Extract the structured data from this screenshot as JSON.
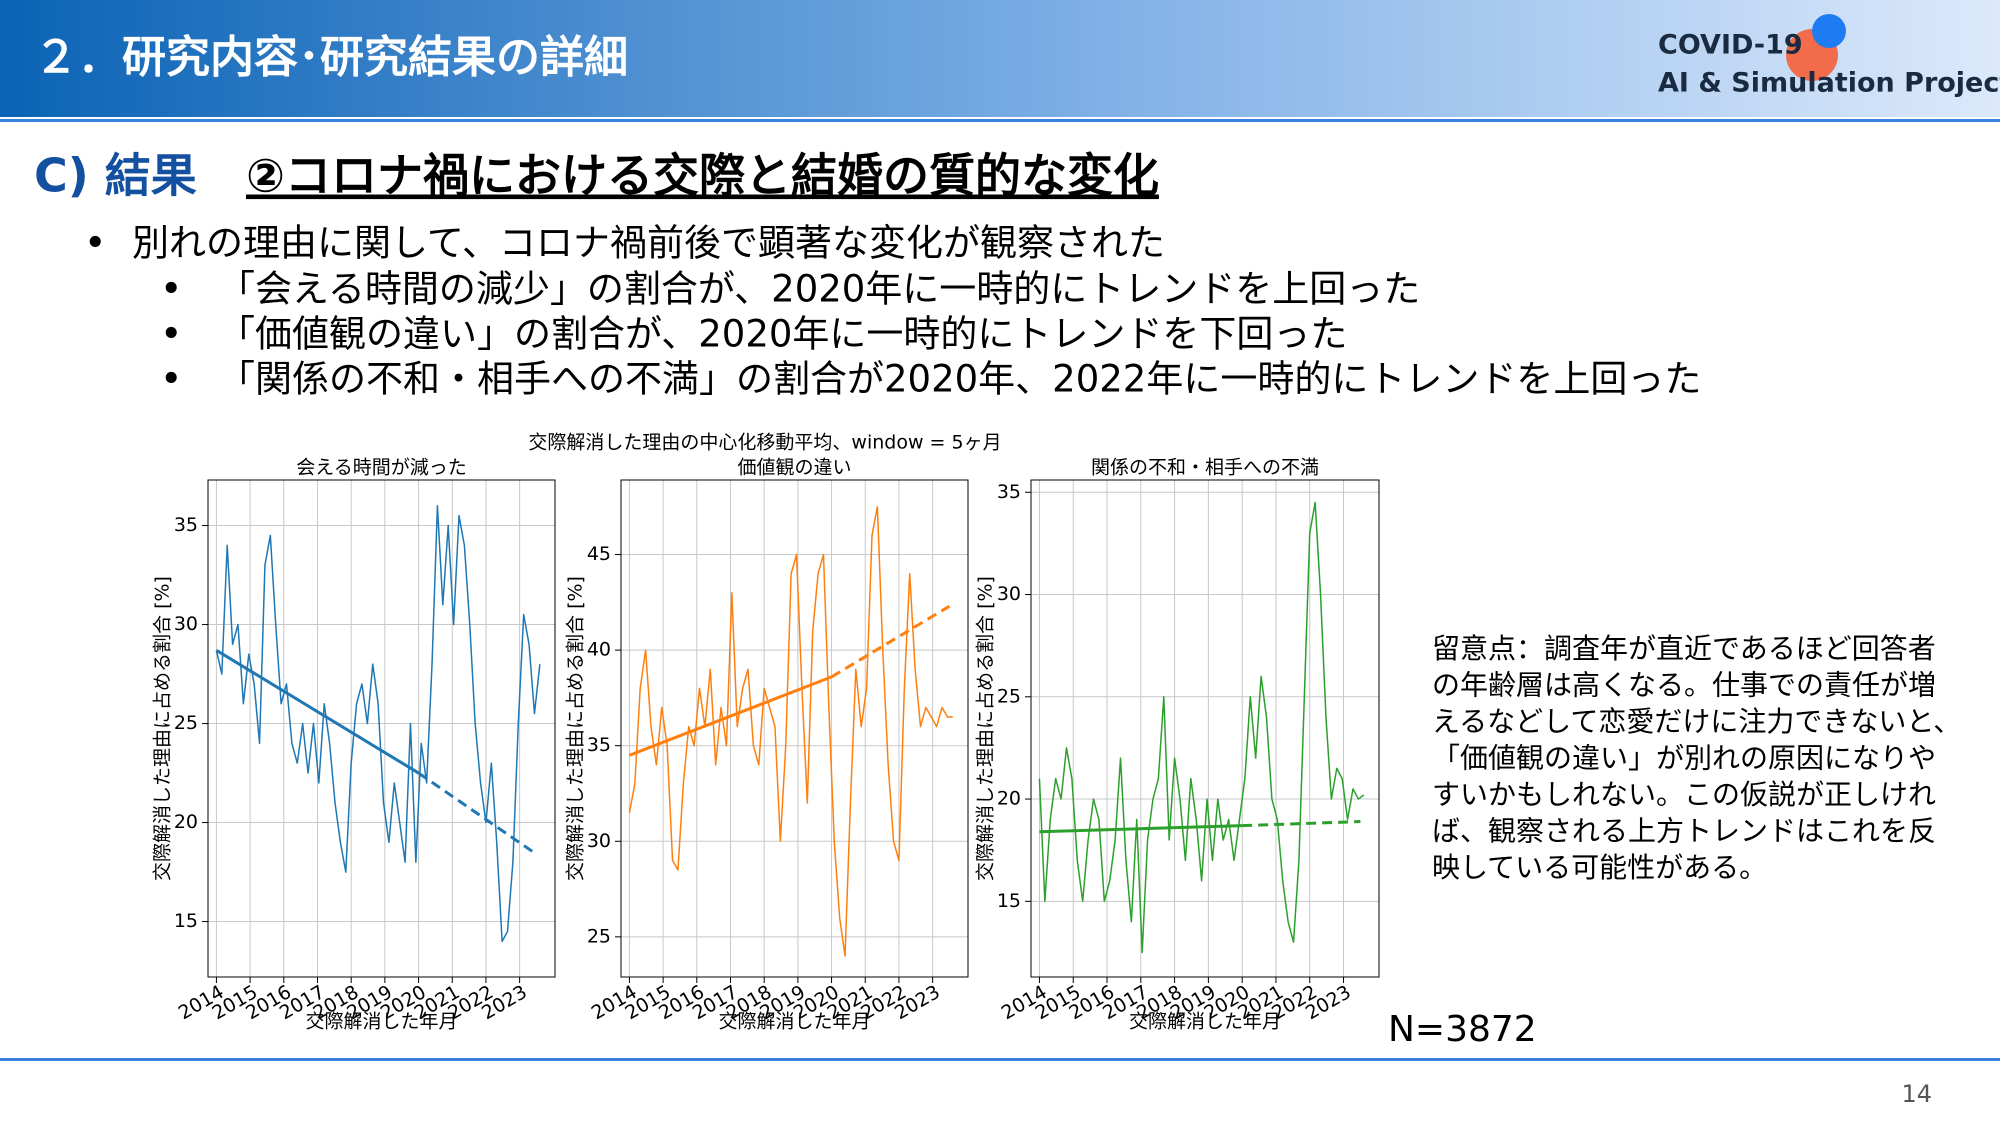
{
  "header": {
    "title": "２．研究内容･研究結果の詳細",
    "logo_line1": "COVID-19",
    "logo_line2": "AI & Simulation Project"
  },
  "section": {
    "label": "C) 結果",
    "title": "②コロナ禍における交際と結婚の質的な変化"
  },
  "bullets": [
    "別れの理由に関して、コロナ禍前後で顕著な変化が観察された"
  ],
  "sub_bullets": [
    "「会える時間の減少」の割合が、2020年に一時的にトレンドを上回った",
    "「価値観の違い」の割合が、2020年に一時的にトレンドを下回った",
    "「関係の不和・相手への不満」の割合が2020年、2022年に一時的にトレンドを上回った"
  ],
  "figure_title": "交際解消した理由の中心化移動平均、window = 5ヶ月",
  "note": [
    "留意点：調査年が直近であるほど回答者",
    "の年齢層は高くなる。仕事での責任が増",
    "えるなどして恋愛だけに注力できないと、",
    "「価値観の違い」が別れの原因になりや",
    "すいかもしれない。この仮説が正しけれ",
    "ば、観察される上方トレンドはこれを反",
    "映している可能性がある。"
  ],
  "sample_size": "N=3872",
  "page_number": "14",
  "chart_data": [
    {
      "type": "line",
      "title": "会える時間が減った",
      "xlabel": "交際解消した年月",
      "ylabel": "交際解消した理由に占める割合 [%]",
      "xlim": [
        2013.75,
        2024.05
      ],
      "ylim": [
        12.2,
        37.3
      ],
      "xticks": [
        2014,
        2015,
        2016,
        2017,
        2018,
        2019,
        2020,
        2021,
        2022,
        2023
      ],
      "yticks": [
        15,
        20,
        25,
        30,
        35
      ],
      "grid": true,
      "series": [
        {
          "color": "#1f77b4",
          "linewidth": 1.5,
          "linestyle": "solid",
          "x": [
            2014,
            2014.16,
            2014.32,
            2014.48,
            2014.64,
            2014.8,
            2014.96,
            2015.12,
            2015.28,
            2015.44,
            2015.6,
            2015.76,
            2015.92,
            2016.08,
            2016.24,
            2016.4,
            2016.56,
            2016.72,
            2016.88,
            2017.04,
            2017.2,
            2017.36,
            2017.52,
            2017.68,
            2017.84,
            2018,
            2018.16,
            2018.32,
            2018.48,
            2018.64,
            2018.8,
            2018.96,
            2019.12,
            2019.28,
            2019.44,
            2019.6,
            2019.76,
            2019.92,
            2020.08,
            2020.24,
            2020.4,
            2020.56,
            2020.72,
            2020.88,
            2021.04,
            2021.2,
            2021.36,
            2021.52,
            2021.68,
            2021.84,
            2022,
            2022.16,
            2022.32,
            2022.48,
            2022.64,
            2022.8,
            2022.96,
            2023.12,
            2023.28,
            2023.44,
            2023.6
          ],
          "values": [
            28.7,
            27.5,
            34,
            29,
            30,
            26,
            28.5,
            27,
            24,
            33,
            34.5,
            30,
            26,
            27,
            24,
            23,
            25,
            22.5,
            25,
            22,
            26,
            24,
            21,
            19,
            17.5,
            23,
            26,
            27,
            25,
            28,
            26,
            21,
            19,
            22,
            20,
            18,
            25,
            18,
            24,
            22,
            28,
            36,
            31,
            35,
            30,
            35.5,
            34,
            30,
            25,
            22,
            20,
            23,
            19,
            14,
            14.5,
            18,
            25,
            30.5,
            29,
            25.5,
            28
          ]
        },
        {
          "color": "#1f77b4",
          "linewidth": 3,
          "linestyle": "solid",
          "x": [
            2014,
            2020
          ],
          "values": [
            28.7,
            22.5
          ]
        },
        {
          "color": "#1f77b4",
          "linewidth": 3,
          "linestyle": "dashed",
          "x": [
            2020,
            2023.5
          ],
          "values": [
            22.5,
            18.4
          ]
        }
      ]
    },
    {
      "type": "line",
      "title": "価値観の違い",
      "xlabel": "交際解消した年月",
      "ylabel": "交際解消した理由に占める割合 [%]",
      "xlim": [
        2013.75,
        2024.05
      ],
      "ylim": [
        22.9,
        48.9
      ],
      "xticks": [
        2014,
        2015,
        2016,
        2017,
        2018,
        2019,
        2020,
        2021,
        2022,
        2023
      ],
      "yticks": [
        25,
        30,
        35,
        40,
        45
      ],
      "grid": true,
      "series": [
        {
          "color": "#ff7f0e",
          "linewidth": 1.5,
          "linestyle": "solid",
          "x": [
            2014,
            2014.16,
            2014.32,
            2014.48,
            2014.64,
            2014.8,
            2014.96,
            2015.12,
            2015.28,
            2015.44,
            2015.6,
            2015.76,
            2015.92,
            2016.08,
            2016.24,
            2016.4,
            2016.56,
            2016.72,
            2016.88,
            2017.04,
            2017.2,
            2017.36,
            2017.52,
            2017.68,
            2017.84,
            2018,
            2018.16,
            2018.32,
            2018.48,
            2018.64,
            2018.8,
            2018.96,
            2019.12,
            2019.28,
            2019.44,
            2019.6,
            2019.76,
            2019.92,
            2020.08,
            2020.24,
            2020.4,
            2020.56,
            2020.72,
            2020.88,
            2021.04,
            2021.2,
            2021.36,
            2021.52,
            2021.68,
            2021.84,
            2022,
            2022.16,
            2022.32,
            2022.48,
            2022.64,
            2022.8,
            2022.96,
            2023.12,
            2023.28,
            2023.44,
            2023.6
          ],
          "values": [
            31.5,
            33,
            38,
            40,
            36,
            34,
            37,
            35,
            29,
            28.5,
            33,
            36,
            35,
            38,
            36,
            39,
            34,
            37,
            35,
            43,
            36,
            38,
            39,
            35,
            34,
            38,
            37,
            36,
            30,
            35,
            44,
            45,
            38,
            32,
            41,
            44,
            45,
            37,
            30,
            26,
            24,
            32,
            39,
            36,
            38,
            46,
            47.5,
            40,
            34,
            30,
            29,
            38,
            44,
            39,
            36,
            37,
            36.5,
            36,
            37,
            36.5,
            36.5
          ]
        },
        {
          "color": "#ff7f0e",
          "linewidth": 3,
          "linestyle": "solid",
          "x": [
            2014,
            2020
          ],
          "values": [
            34.5,
            38.6
          ]
        },
        {
          "color": "#ff7f0e",
          "linewidth": 3,
          "linestyle": "dashed",
          "x": [
            2020,
            2023.5
          ],
          "values": [
            38.6,
            42.3
          ]
        }
      ]
    },
    {
      "type": "line",
      "title": "関係の不和・相手への不満",
      "xlabel": "交際解消した年月",
      "ylabel": "交際解消した理由に占める割合 [%]",
      "xlim": [
        2013.75,
        2024.05
      ],
      "ylim": [
        11.3,
        35.6
      ],
      "xticks": [
        2014,
        2015,
        2016,
        2017,
        2018,
        2019,
        2020,
        2021,
        2022,
        2023
      ],
      "yticks": [
        15,
        20,
        25,
        30,
        35
      ],
      "grid": true,
      "series": [
        {
          "color": "#2ca02c",
          "linewidth": 1.5,
          "linestyle": "solid",
          "x": [
            2014,
            2014.16,
            2014.32,
            2014.48,
            2014.64,
            2014.8,
            2014.96,
            2015.12,
            2015.28,
            2015.44,
            2015.6,
            2015.76,
            2015.92,
            2016.08,
            2016.24,
            2016.4,
            2016.56,
            2016.72,
            2016.88,
            2017.04,
            2017.2,
            2017.36,
            2017.52,
            2017.68,
            2017.84,
            2018,
            2018.16,
            2018.32,
            2018.48,
            2018.64,
            2018.8,
            2018.96,
            2019.12,
            2019.28,
            2019.44,
            2019.6,
            2019.76,
            2019.92,
            2020.08,
            2020.24,
            2020.4,
            2020.56,
            2020.72,
            2020.88,
            2021.04,
            2021.2,
            2021.36,
            2021.52,
            2021.68,
            2021.84,
            2022,
            2022.16,
            2022.32,
            2022.48,
            2022.64,
            2022.8,
            2022.96,
            2023.12,
            2023.28,
            2023.44,
            2023.6
          ],
          "values": [
            21,
            15,
            19,
            21,
            20,
            22.5,
            21,
            17,
            15,
            18,
            20,
            19,
            15,
            16,
            18,
            22,
            17,
            14,
            19,
            12.5,
            18,
            20,
            21,
            25,
            18,
            22,
            20,
            17,
            21,
            19,
            16,
            20,
            17,
            20,
            18,
            19,
            17,
            19,
            21,
            25,
            22,
            26,
            24,
            20,
            19,
            16,
            14,
            13,
            17,
            25,
            33,
            34.5,
            30,
            24,
            20,
            21.5,
            21,
            19,
            20.5,
            20,
            20.2
          ]
        },
        {
          "color": "#2ca02c",
          "linewidth": 3,
          "linestyle": "solid",
          "x": [
            2014,
            2020
          ],
          "values": [
            18.4,
            18.7
          ]
        },
        {
          "color": "#2ca02c",
          "linewidth": 3,
          "linestyle": "dashed",
          "x": [
            2020,
            2023.5
          ],
          "values": [
            18.7,
            18.9
          ]
        }
      ]
    }
  ]
}
